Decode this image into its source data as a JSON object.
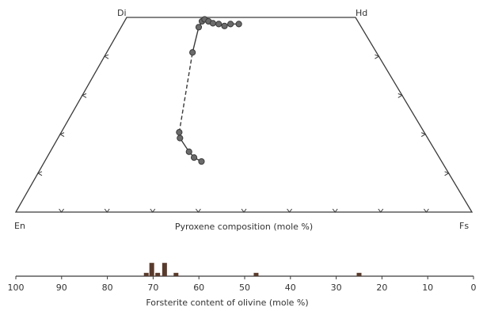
{
  "chart_data": [
    {
      "type": "scatter",
      "subtype": "pyroxene-quadrilateral",
      "title": "",
      "xlabel": "Pyroxene composition (mole %)",
      "corners": {
        "top_left": "Di",
        "top_right": "Hd",
        "bottom_left": "En",
        "bottom_right": "Fs"
      },
      "ticks_per_edge": 9,
      "series": [
        {
          "points": [
            {
              "x": 39.5,
              "y": 13
            },
            {
              "x": 37.5,
              "y": 14
            },
            {
              "x": 36,
              "y": 15.5
            },
            {
              "x": 33,
              "y": 19
            },
            {
              "x": 32.5,
              "y": 20.5
            },
            {
              "x": 31.8,
              "y": 41
            },
            {
              "x": 32.3,
              "y": 47.5
            },
            {
              "x": 33.2,
              "y": 49
            },
            {
              "x": 34.2,
              "y": 49.5
            },
            {
              "x": 36,
              "y": 49
            },
            {
              "x": 38,
              "y": 48.5
            },
            {
              "x": 40.5,
              "y": 48.3
            },
            {
              "x": 43,
              "y": 47.8
            },
            {
              "x": 45.5,
              "y": 48.3
            },
            {
              "x": 49,
              "y": 48.3
            }
          ],
          "dashed_segment_between_points": [
            4,
            5
          ]
        }
      ],
      "colors": {
        "ink": "#3a3a3a",
        "marker_fill": "#6b6b6b"
      }
    },
    {
      "type": "bar",
      "xlabel": "Forsterite content of olivine (mole %)",
      "xlim": [
        100,
        0
      ],
      "xticks": [
        "100",
        "90",
        "80",
        "70",
        "60",
        "50",
        "40",
        "30",
        "20",
        "10",
        "0"
      ],
      "bars": [
        {
          "x": 71.5,
          "value": 1
        },
        {
          "x": 70.3,
          "value": 4
        },
        {
          "x": 69,
          "value": 1
        },
        {
          "x": 67.5,
          "value": 4
        },
        {
          "x": 65,
          "value": 1
        },
        {
          "x": 47.5,
          "value": 1
        },
        {
          "x": 25,
          "value": 1
        }
      ]
    }
  ]
}
